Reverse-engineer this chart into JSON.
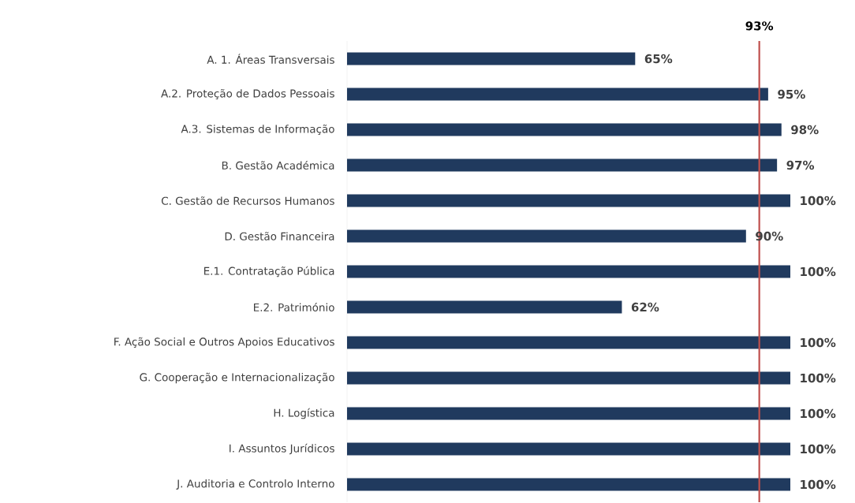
{
  "chart_data": {
    "type": "bar",
    "orientation": "horizontal",
    "categories": [
      "A. 1. Áreas Transversais",
      "A.2. Proteção de Dados Pessoais",
      "A.3. Sistemas de Informação",
      "B. Gestão Académica",
      "C. Gestão de Recursos Humanos",
      "D. Gestão Financeira",
      "E.1. Contratação Pública",
      "E.2. Património",
      "F. Ação Social e Outros Apoios Educativos",
      "G. Cooperação e Internacionalização",
      "H. Logística",
      "I. Assuntos Jurídicos",
      "J. Auditoria e Controlo Interno"
    ],
    "values": [
      65,
      95,
      98,
      97,
      100,
      90,
      100,
      62,
      100,
      100,
      100,
      100,
      100
    ],
    "value_labels": [
      "65%",
      "95%",
      "98%",
      "97%",
      "100%",
      "90%",
      "100%",
      "62%",
      "100%",
      "100%",
      "100%",
      "100%",
      "100%"
    ],
    "color": "#203a5e",
    "xlim": [
      0,
      100
    ],
    "tick_labels": "y",
    "ref_lines": [
      {
        "axis": "x",
        "value": 93,
        "label": "93%",
        "color": "#c0504d"
      }
    ]
  }
}
